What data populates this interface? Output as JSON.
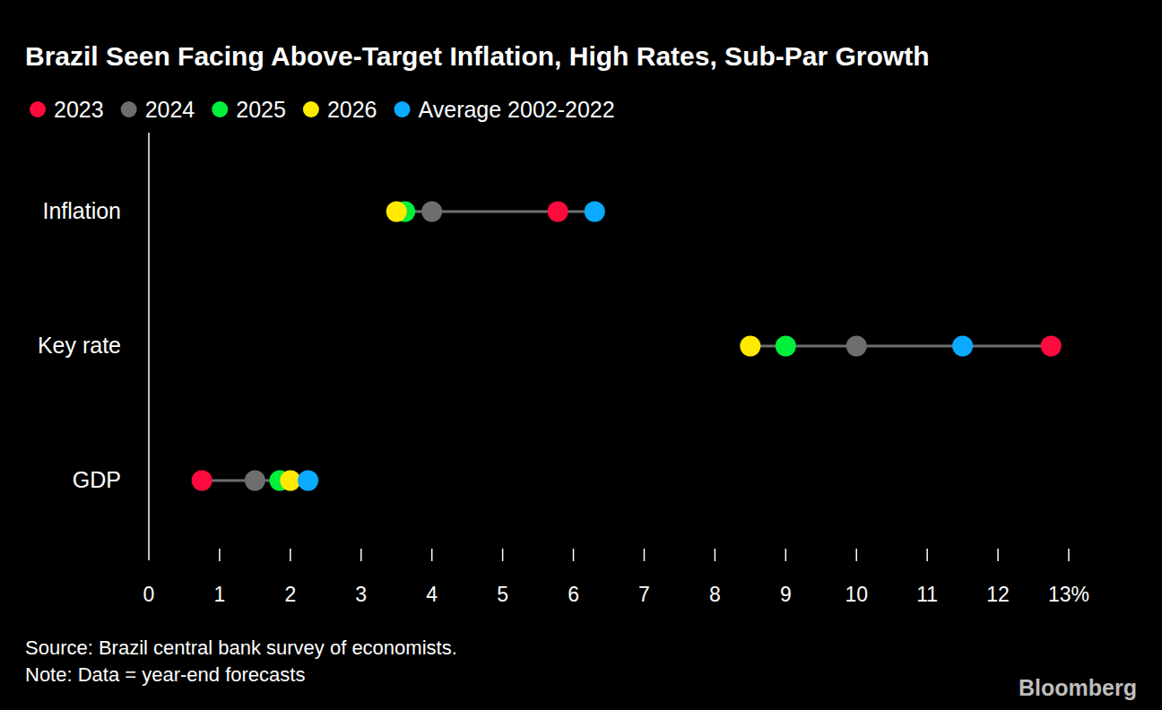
{
  "chart_data": {
    "type": "dot",
    "orientation": "horizontal",
    "title": "Brazil Seen Facing Above-Target Inflation, High Rates, Sub-Par Growth",
    "categories": [
      "Inflation",
      "Key rate",
      "GDP"
    ],
    "series": [
      {
        "name": "2023",
        "color": "#ff0a3c",
        "values": [
          5.78,
          12.75,
          0.75
        ]
      },
      {
        "name": "2024",
        "color": "#6e6e6e",
        "values": [
          4.0,
          10.0,
          1.5
        ]
      },
      {
        "name": "2025",
        "color": "#00f03c",
        "values": [
          3.62,
          9.0,
          1.85
        ]
      },
      {
        "name": "2026",
        "color": "#ffea00",
        "values": [
          3.5,
          8.5,
          2.0
        ]
      },
      {
        "name": "Average 2002-2022",
        "color": "#0aaaff",
        "values": [
          6.3,
          11.5,
          2.25
        ]
      }
    ],
    "xlim": [
      0,
      13
    ],
    "xticks": [
      0,
      1,
      2,
      3,
      4,
      5,
      6,
      7,
      8,
      9,
      10,
      11,
      12,
      {
        "value": 13,
        "label": "13%"
      }
    ],
    "legend": "top",
    "source": "Source: Brazil central bank survey of economists.",
    "note": "Note: Data = year-end forecasts",
    "credit": "Bloomberg"
  }
}
